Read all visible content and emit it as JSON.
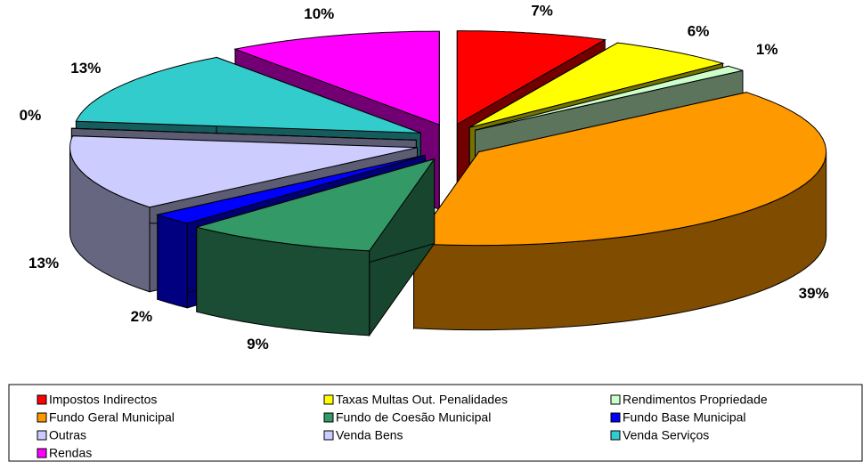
{
  "chart_data": {
    "type": "pie",
    "categories": [
      "Impostos Indirectos",
      "Taxas Multas Out. Penalidades",
      "Rendimentos Propriedade",
      "Fundo Geral Municipal",
      "Fundo de Coesão Municipal",
      "Fundo Base Municipal",
      "Outras",
      "Venda Bens",
      "Venda Serviços",
      "Rendas"
    ],
    "values": [
      7,
      6,
      1,
      39,
      9,
      2,
      13,
      0,
      13,
      10
    ],
    "value_labels": [
      "7%",
      "6%",
      "1%",
      "39%",
      "9%",
      "2%",
      "13%",
      "0%",
      "13%",
      "10%"
    ],
    "colors": [
      "#ff0000",
      "#ffff00",
      "#ccffcc",
      "#ff9900",
      "#339966",
      "#0000ff",
      "#ccccff",
      "#ccccff",
      "#33cccc",
      "#ff00ff"
    ],
    "legend": "bottom"
  }
}
